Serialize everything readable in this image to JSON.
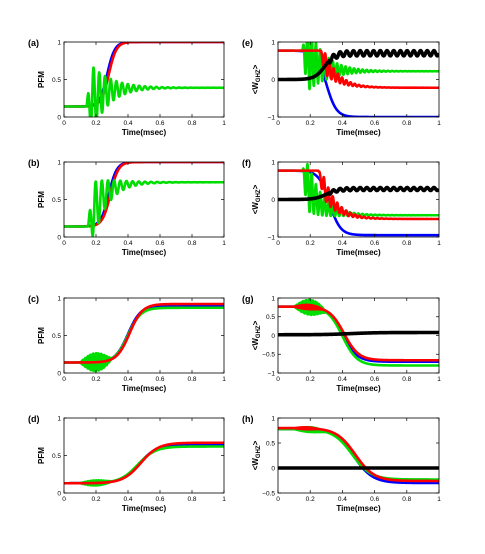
{
  "chart_data": [
    {
      "type": "line",
      "panel_label": "(a)",
      "xlabel": "Time(msec)",
      "ylabel": "PFM",
      "xlim": [
        0,
        1
      ],
      "ylim": [
        0,
        1
      ],
      "xticks": [
        "0",
        "0.2",
        "0.4",
        "0.6",
        "0.8",
        "1"
      ],
      "yticks": [
        "0",
        "0.5",
        "1"
      ],
      "series": [
        {
          "color": "#0000ff",
          "kind": "logistic",
          "v0": 0.14,
          "v1": 1.0,
          "t0": 0.27,
          "k": 42
        },
        {
          "color": "#ff0000",
          "kind": "logistic",
          "v0": 0.14,
          "v1": 1.0,
          "t0": 0.28,
          "k": 42
        },
        {
          "color": "#00dd00",
          "kind": "ring",
          "v0": 0.14,
          "v1": 0.39,
          "t1": 0.14,
          "amp": 0.62,
          "freq": 28,
          "decay": 9
        }
      ]
    },
    {
      "type": "line",
      "panel_label": "(b)",
      "xlabel": "Time(msec)",
      "ylabel": "PFM",
      "xlim": [
        0,
        1
      ],
      "ylim": [
        0,
        1
      ],
      "xticks": [
        "0",
        "0.2",
        "0.4",
        "0.6",
        "0.8",
        "1"
      ],
      "yticks": [
        "0",
        "0.5",
        "1"
      ],
      "series": [
        {
          "color": "#0000ff",
          "kind": "logistic",
          "v0": 0.14,
          "v1": 1.0,
          "t0": 0.28,
          "k": 40
        },
        {
          "color": "#ff0000",
          "kind": "logistic",
          "v0": 0.14,
          "v1": 1.0,
          "t0": 0.29,
          "k": 40
        },
        {
          "color": "#00dd00",
          "kind": "ring",
          "v0": 0.14,
          "v1": 0.73,
          "t1": 0.15,
          "amp": 0.55,
          "freq": 26,
          "decay": 10
        }
      ]
    },
    {
      "type": "line",
      "panel_label": "(c)",
      "xlabel": "Time(msec)",
      "ylabel": "PFM",
      "xlim": [
        0,
        1
      ],
      "ylim": [
        0,
        1
      ],
      "xticks": [
        "0",
        "0.2",
        "0.4",
        "0.6",
        "0.8",
        "1"
      ],
      "yticks": [
        "0",
        "0.5",
        "1"
      ],
      "series": [
        {
          "color": "#0000ff",
          "kind": "logistic",
          "v0": 0.14,
          "v1": 0.9,
          "t0": 0.4,
          "k": 25
        },
        {
          "color": "#00dd00",
          "kind": "noisy",
          "v0": 0.14,
          "v1": 0.87,
          "t0": 0.4,
          "k": 25,
          "nstart": 0.1,
          "nend": 0.3,
          "namp": 0.12,
          "nfreq": 160
        },
        {
          "color": "#ff0000",
          "kind": "logistic",
          "v0": 0.14,
          "v1": 0.92,
          "t0": 0.41,
          "k": 25
        }
      ]
    },
    {
      "type": "line",
      "panel_label": "(d)",
      "xlabel": "Time(msec)",
      "ylabel": "PFM",
      "xlim": [
        0,
        1
      ],
      "ylim": [
        0,
        1
      ],
      "xticks": [
        "0",
        "0.2",
        "0.4",
        "0.6",
        "0.8",
        "1"
      ],
      "yticks": [
        "0",
        "0.5",
        "1"
      ],
      "series": [
        {
          "color": "#0000ff",
          "kind": "logistic",
          "v0": 0.13,
          "v1": 0.65,
          "t0": 0.47,
          "k": 18
        },
        {
          "color": "#00dd00",
          "kind": "noisy",
          "v0": 0.13,
          "v1": 0.62,
          "t0": 0.46,
          "k": 18,
          "nstart": 0.1,
          "nend": 0.3,
          "namp": 0.035,
          "nfreq": 160
        },
        {
          "color": "#ff0000",
          "kind": "logistic",
          "v0": 0.13,
          "v1": 0.67,
          "t0": 0.48,
          "k": 18
        }
      ]
    },
    {
      "type": "line",
      "panel_label": "(e)",
      "xlabel": "Time(msec)",
      "ylabel": "<W_GHZ>",
      "xlim": [
        0,
        1
      ],
      "ylim": [
        -1,
        1
      ],
      "xticks": [
        "0",
        "0.2",
        "0.4",
        "0.6",
        "0.8",
        "1"
      ],
      "yticks": [
        "−1",
        "0",
        "1"
      ],
      "series": [
        {
          "color": "#0000ff",
          "kind": "logistic",
          "v0": 0.77,
          "v1": -1.0,
          "t0": 0.3,
          "k": 32
        },
        {
          "color": "#00dd00",
          "kind": "ring",
          "v0": 0.77,
          "v1": 0.22,
          "t1": 0.15,
          "amp": 1.2,
          "freq": 38,
          "decay": 9
        },
        {
          "color": "#ff0000",
          "kind": "ring",
          "v0": 0.77,
          "v1": -0.22,
          "t1": 0.26,
          "amp": 0.45,
          "freq": 38,
          "decay": 12
        },
        {
          "color": "#000000",
          "kind": "logwave",
          "v0": 0.0,
          "v1": 0.7,
          "t0": 0.29,
          "k": 32,
          "wamp": 0.07,
          "wfreq": 24,
          "wstart": 0.32
        }
      ]
    },
    {
      "type": "line",
      "panel_label": "(f)",
      "xlabel": "Time(msec)",
      "ylabel": "<W_GHZ>",
      "xlim": [
        0,
        1
      ],
      "ylim": [
        -1,
        1
      ],
      "xticks": [
        "0",
        "0.2",
        "0.4",
        "0.6",
        "0.8",
        "1"
      ],
      "yticks": [
        "−1",
        "0",
        "1"
      ],
      "series": [
        {
          "color": "#0000ff",
          "kind": "logistic",
          "v0": 0.77,
          "v1": -0.95,
          "t0": 0.32,
          "k": 30
        },
        {
          "color": "#00dd00",
          "kind": "ring",
          "v0": 0.77,
          "v1": -0.42,
          "t1": 0.15,
          "amp": 0.95,
          "freq": 38,
          "decay": 10
        },
        {
          "color": "#ff0000",
          "kind": "ring",
          "v0": 0.77,
          "v1": -0.52,
          "t1": 0.25,
          "amp": 0.45,
          "freq": 36,
          "decay": 11
        },
        {
          "color": "#000000",
          "kind": "logwave",
          "v0": 0.0,
          "v1": 0.28,
          "t0": 0.3,
          "k": 28,
          "wamp": 0.04,
          "wfreq": 24,
          "wstart": 0.32
        }
      ]
    },
    {
      "type": "line",
      "panel_label": "(g)",
      "xlabel": "Time(msec)",
      "ylabel": "<W_GHZ>",
      "xlim": [
        0,
        1
      ],
      "ylim": [
        -1,
        1
      ],
      "xticks": [
        "0",
        "0.2",
        "0.4",
        "0.6",
        "0.8",
        "1"
      ],
      "yticks": [
        "−1",
        "−0.5",
        "0",
        "0.5",
        "1"
      ],
      "series": [
        {
          "color": "#0000ff",
          "kind": "logistic",
          "v0": 0.77,
          "v1": -0.7,
          "t0": 0.4,
          "k": 22
        },
        {
          "color": "#00dd00",
          "kind": "noisy",
          "v0": 0.77,
          "v1": -0.8,
          "t0": 0.4,
          "k": 22,
          "nstart": 0.1,
          "nend": 0.3,
          "namp": 0.2,
          "nfreq": 130
        },
        {
          "color": "#ff0000",
          "kind": "noisy",
          "v0": 0.77,
          "v1": -0.66,
          "t0": 0.41,
          "k": 22,
          "nstart": 0.1,
          "nend": 0.28,
          "namp": 0.06,
          "nfreq": 130
        },
        {
          "color": "#000000",
          "kind": "logistic",
          "v0": 0.02,
          "v1": 0.08,
          "t0": 0.45,
          "k": 12
        }
      ]
    },
    {
      "type": "line",
      "panel_label": "(h)",
      "xlabel": "Time(msec)",
      "ylabel": "<W_GHZ>",
      "xlim": [
        0,
        1
      ],
      "ylim": [
        -0.5,
        1
      ],
      "xticks": [
        "0",
        "0.2",
        "0.4",
        "0.6",
        "0.8",
        "1"
      ],
      "yticks": [
        "−0.5",
        "0",
        "0.5",
        "1"
      ],
      "series": [
        {
          "color": "#0000ff",
          "kind": "logistic",
          "v0": 0.78,
          "v1": -0.3,
          "t0": 0.47,
          "k": 17
        },
        {
          "color": "#00dd00",
          "kind": "noisy",
          "v0": 0.78,
          "v1": -0.23,
          "t0": 0.46,
          "k": 17,
          "nstart": 0.1,
          "nend": 0.3,
          "namp": 0.05,
          "nfreq": 140
        },
        {
          "color": "#ff0000",
          "kind": "noisy",
          "v0": 0.8,
          "v1": -0.26,
          "t0": 0.48,
          "k": 17,
          "nstart": 0.1,
          "nend": 0.25,
          "namp": 0.02,
          "nfreq": 140
        },
        {
          "color": "#000000",
          "kind": "logistic",
          "v0": 0.0,
          "v1": 0.0,
          "t0": 0.5,
          "k": 10
        }
      ]
    }
  ]
}
